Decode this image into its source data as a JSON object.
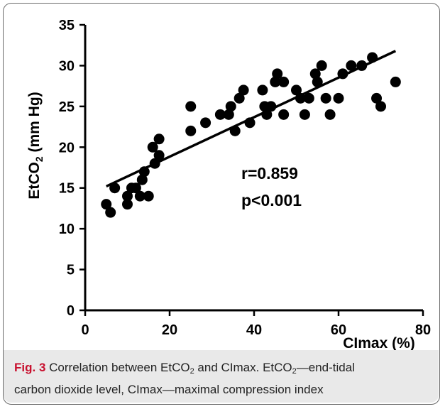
{
  "chart_data": {
    "type": "scatter",
    "title": "",
    "xlabel": "CImax (%)",
    "ylabel": "EtCO2 (mm Hg)",
    "xlim": [
      0,
      80
    ],
    "ylim": [
      0,
      35
    ],
    "x_ticks": [
      "0",
      "20",
      "40",
      "60",
      "80"
    ],
    "y_ticks": [
      "0",
      "5",
      "10",
      "15",
      "20",
      "25",
      "30",
      "35"
    ],
    "grid": false,
    "legend": "none",
    "series": [
      {
        "points": [
          [
            5,
            13
          ],
          [
            6,
            12
          ],
          [
            7,
            15
          ],
          [
            10,
            13
          ],
          [
            10,
            14
          ],
          [
            11,
            15
          ],
          [
            12,
            15
          ],
          [
            13,
            14
          ],
          [
            13.5,
            16
          ],
          [
            14,
            17
          ],
          [
            15,
            14
          ],
          [
            16,
            20
          ],
          [
            16.5,
            18
          ],
          [
            17.5,
            19
          ],
          [
            17.5,
            21
          ],
          [
            25,
            25
          ],
          [
            25,
            22
          ],
          [
            28.5,
            23
          ],
          [
            32,
            24
          ],
          [
            34,
            24
          ],
          [
            34.5,
            25
          ],
          [
            35.5,
            22
          ],
          [
            36.5,
            26
          ],
          [
            37.5,
            27
          ],
          [
            39,
            23
          ],
          [
            42,
            27
          ],
          [
            42.5,
            25
          ],
          [
            43,
            24
          ],
          [
            44,
            25
          ],
          [
            45,
            28
          ],
          [
            45.5,
            29
          ],
          [
            47,
            28
          ],
          [
            47,
            24
          ],
          [
            50,
            27
          ],
          [
            51,
            26
          ],
          [
            52,
            24
          ],
          [
            53,
            26
          ],
          [
            54.5,
            29
          ],
          [
            55,
            28
          ],
          [
            56,
            30
          ],
          [
            57,
            26
          ],
          [
            58,
            24
          ],
          [
            60,
            26
          ],
          [
            61,
            29
          ],
          [
            63,
            30
          ],
          [
            65.5,
            30
          ],
          [
            68,
            31
          ],
          [
            69,
            26
          ],
          [
            70,
            25
          ],
          [
            73.5,
            28
          ]
        ]
      }
    ],
    "trendline": {
      "x": [
        5,
        73.5
      ],
      "y": [
        15.2,
        31.8
      ]
    },
    "annotations": [
      "r=0.859",
      "p<0.001"
    ]
  },
  "caption": {
    "fig_label": "Fig. 3",
    "text_a": "Correlation between EtCO",
    "sub": "2",
    "text_b": " and CImax. EtCO",
    "text_c": "—end-tidal",
    "text_d": "carbon dioxide level, CImax—maximal compression index"
  },
  "colors": {
    "points": "#000000",
    "caption_bg": "#e9e9e9",
    "fig_label": "#c8102e",
    "frame": "#6b6b6b"
  }
}
